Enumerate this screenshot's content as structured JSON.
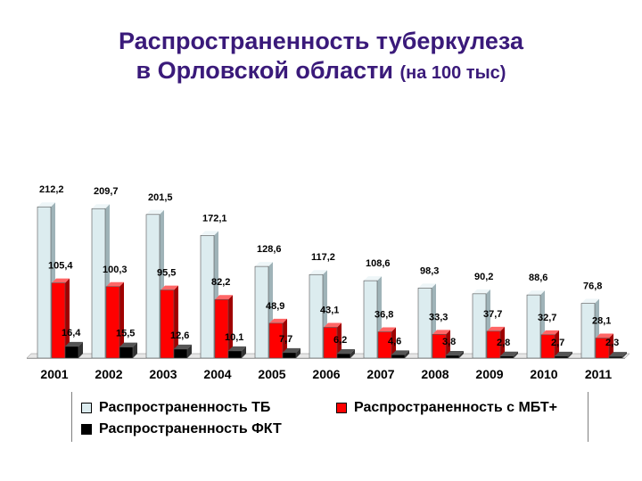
{
  "title": {
    "line1": "Распространенность туберкулеза",
    "line2": "в Орловской области",
    "note": "(на 100 тыс)"
  },
  "colors": {
    "tb": "#dcecef",
    "mbt": "#ff0000",
    "fkt": "#000000"
  },
  "chart_data": {
    "type": "bar",
    "categories": [
      "2001",
      "2002",
      "2003",
      "2004",
      "2005",
      "2006",
      "2007",
      "2008",
      "2009",
      "2010",
      "2011"
    ],
    "series": [
      {
        "name": "Распространенность ТБ",
        "values": [
          212.2,
          209.7,
          201.5,
          172.1,
          128.6,
          117.2,
          108.6,
          98.3,
          90.2,
          88.6,
          76.8
        ],
        "labels": [
          "212,2",
          "209,7",
          "201,5",
          "172,1",
          "128,6",
          "117,2",
          "108,6",
          "98,3",
          "90,2",
          "88,6",
          "76,8"
        ]
      },
      {
        "name": "Распространенность с МБТ+",
        "values": [
          105.4,
          100.3,
          95.5,
          82.2,
          48.9,
          43.1,
          36.8,
          33.3,
          37.7,
          32.7,
          28.1
        ],
        "labels": [
          "105,4",
          "100,3",
          "95,5",
          "82,2",
          "48,9",
          "43,1",
          "36,8",
          "33,3",
          "37,7",
          "32,7",
          "28,1"
        ]
      },
      {
        "name": "Распространенность ФКТ",
        "values": [
          16.4,
          15.5,
          12.6,
          10.1,
          7.7,
          6.2,
          4.6,
          3.8,
          2.8,
          2.7,
          2.3
        ],
        "labels": [
          "16,4",
          "15,5",
          "12,6",
          "10,1",
          "7,7",
          "6,2",
          "4,6",
          "3,8",
          "2,8",
          "2,7",
          "2,3"
        ]
      }
    ],
    "ylim": [
      0,
      230
    ],
    "grid": false,
    "legend_position": "bottom"
  }
}
